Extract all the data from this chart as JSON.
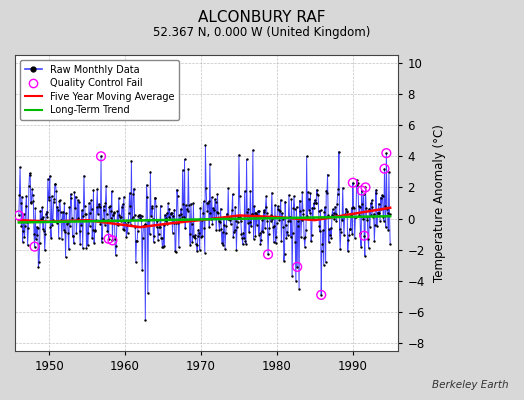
{
  "title": "ALCONBURY RAF",
  "subtitle": "52.367 N, 0.000 W (United Kingdom)",
  "ylabel": "Temperature Anomaly (°C)",
  "credit": "Berkeley Earth",
  "ylim": [
    -8.5,
    10.5
  ],
  "xlim": [
    1945.5,
    1996.0
  ],
  "yticks": [
    -8,
    -6,
    -4,
    -2,
    0,
    2,
    4,
    6,
    8,
    10
  ],
  "xticks": [
    1950,
    1960,
    1970,
    1980,
    1990
  ],
  "bg_color": "#d8d8d8",
  "plot_bg_color": "#ffffff",
  "raw_color": "#4444ff",
  "dot_color": "#000000",
  "qc_color": "#ff00ff",
  "ma_color": "#ff0000",
  "trend_color": "#00bb00",
  "seed": 123,
  "n_months": 588,
  "start_year": 1946.0,
  "end_year": 1994.917
}
